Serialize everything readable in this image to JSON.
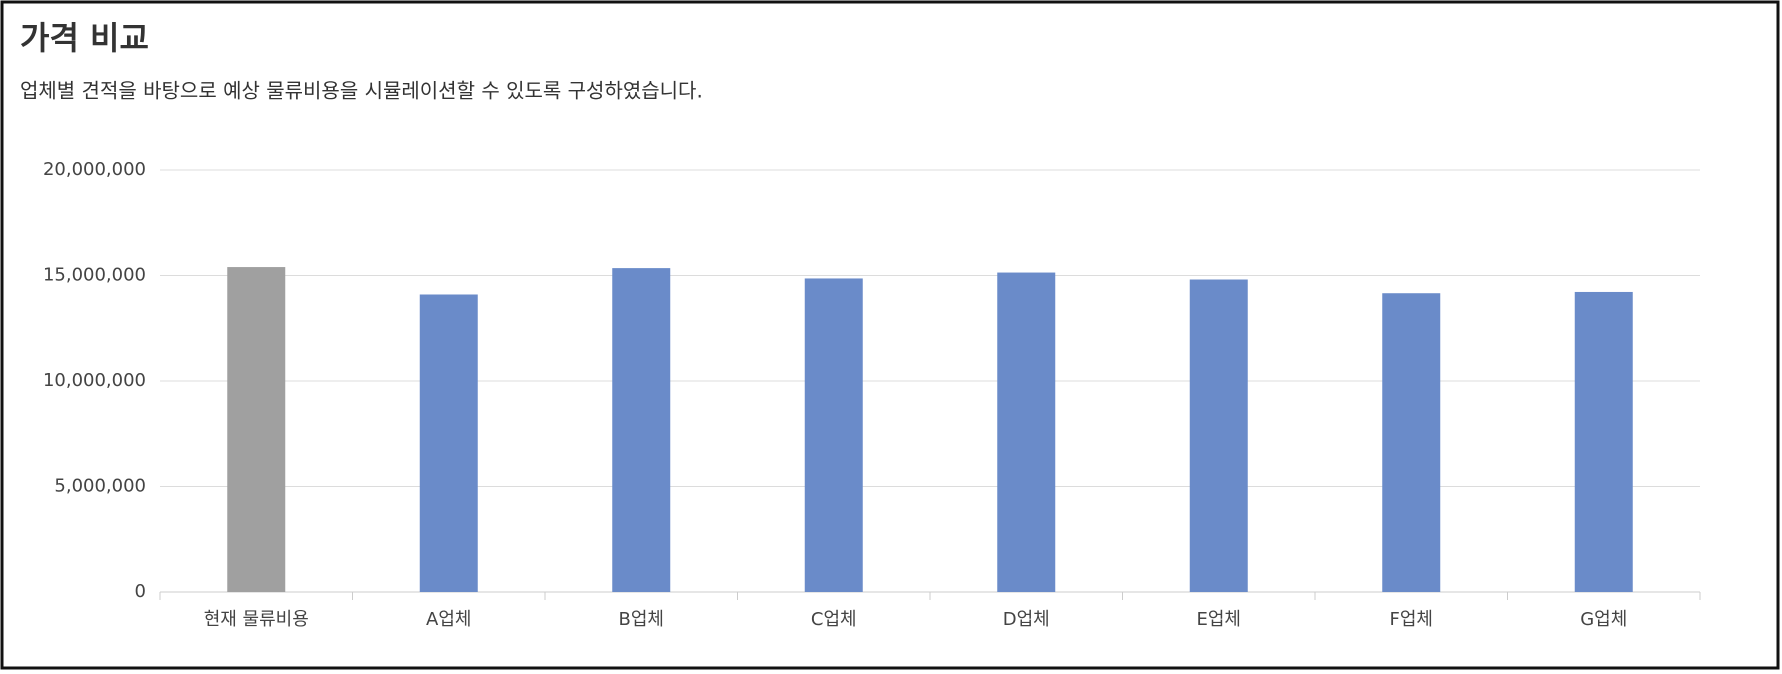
{
  "chart_data": {
    "type": "bar",
    "title": "가격 비교",
    "subtitle": "업체별 견적을 바탕으로 예상 물류비용을 시뮬레이션할 수 있도록 구성하였습니다.",
    "categories": [
      "현재 물류비용",
      "A업체",
      "B업체",
      "C업체",
      "D업체",
      "E업체",
      "F업체",
      "G업체"
    ],
    "values": [
      15400000,
      14100000,
      15350000,
      14860000,
      15140000,
      14810000,
      14160000,
      14220000
    ],
    "colors": [
      "#a0a0a0",
      "#6a8bc9",
      "#6a8bc9",
      "#6a8bc9",
      "#6a8bc9",
      "#6a8bc9",
      "#6a8bc9",
      "#6a8bc9"
    ],
    "ylim": [
      0,
      20000000
    ],
    "yticks": [
      0,
      {
        "value": 5000000,
        "label": "5,000,000"
      },
      {
        "value": 10000000,
        "label": "10,000,000"
      },
      {
        "value": 15000000,
        "label": "15,000,000"
      },
      {
        "value": 20000000,
        "label": "20,000,000"
      }
    ],
    "grid": true
  }
}
